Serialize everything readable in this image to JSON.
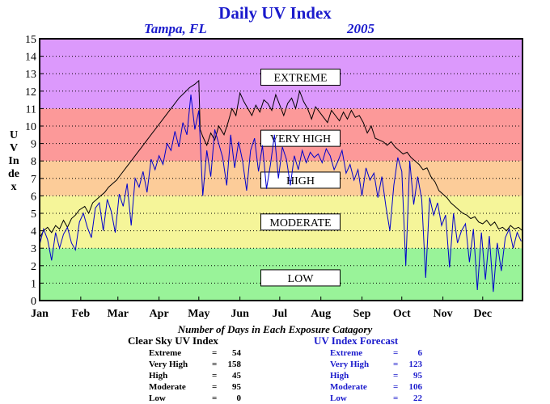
{
  "chart_data": {
    "type": "line",
    "title": "Daily UV Index",
    "subtitle_location": "Tampa, FL",
    "subtitle_year": "2005",
    "ylabel": "UV Index",
    "xlabel": "",
    "ylim": [
      0,
      15
    ],
    "xlim": [
      1,
      365
    ],
    "yticks": [
      0,
      1,
      2,
      3,
      4,
      5,
      6,
      7,
      8,
      9,
      10,
      11,
      12,
      13,
      14,
      15
    ],
    "xticks": [
      {
        "label": "Jan",
        "day": 1
      },
      {
        "label": "Feb",
        "day": 32
      },
      {
        "label": "Mar",
        "day": 60
      },
      {
        "label": "Apr",
        "day": 91
      },
      {
        "label": "May",
        "day": 121
      },
      {
        "label": "Jun",
        "day": 152
      },
      {
        "label": "Jul",
        "day": 182
      },
      {
        "label": "Aug",
        "day": 213
      },
      {
        "label": "Sep",
        "day": 244
      },
      {
        "label": "Oct",
        "day": 274
      },
      {
        "label": "Nov",
        "day": 305
      },
      {
        "label": "Dec",
        "day": 335
      }
    ],
    "grid": "horizontal dotted",
    "bands": [
      {
        "label": "LOW",
        "from": 0,
        "to": 3,
        "color": "#99f399",
        "label_y": 1.3
      },
      {
        "label": "MODERATE",
        "from": 3,
        "to": 6,
        "color": "#f5f599",
        "label_y": 4.5
      },
      {
        "label": "HIGH",
        "from": 6,
        "to": 8,
        "color": "#fccc99",
        "label_y": 6.9
      },
      {
        "label": "VERY HIGH",
        "from": 8,
        "to": 11,
        "color": "#fc9999",
        "label_y": 9.3
      },
      {
        "label": "EXTREME",
        "from": 11,
        "to": 15,
        "color": "#dc99fc",
        "label_y": 12.8
      }
    ],
    "series": [
      {
        "color": "#000000",
        "x": [
          1,
          4,
          7,
          10,
          13,
          16,
          19,
          22,
          25,
          28,
          31,
          35,
          38,
          41,
          44,
          47,
          50,
          53,
          56,
          59,
          62,
          66,
          70,
          74,
          78,
          82,
          86,
          90,
          94,
          98,
          102,
          106,
          110,
          114,
          118,
          121,
          122,
          124,
          127,
          130,
          133,
          136,
          140,
          143,
          146,
          149,
          152,
          155,
          158,
          161,
          164,
          167,
          170,
          173,
          176,
          179,
          182,
          185,
          188,
          191,
          194,
          197,
          200,
          203,
          206,
          209,
          212,
          215,
          218,
          221,
          224,
          227,
          230,
          233,
          236,
          239,
          242,
          245,
          248,
          251,
          254,
          257,
          260,
          263,
          266,
          269,
          272,
          275,
          278,
          281,
          284,
          287,
          290,
          293,
          296,
          299,
          302,
          305,
          308,
          311,
          314,
          317,
          320,
          323,
          326,
          329,
          332,
          335,
          338,
          341,
          344,
          347,
          350,
          353,
          356,
          359,
          362,
          365
        ],
        "y": [
          3.6,
          4.0,
          4.2,
          3.9,
          4.3,
          4.1,
          4.6,
          4.2,
          4.7,
          4.9,
          5.2,
          5.4,
          5.0,
          5.6,
          5.8,
          6.0,
          6.2,
          6.5,
          6.7,
          6.9,
          7.2,
          7.6,
          8.0,
          8.4,
          8.8,
          9.2,
          9.6,
          10.0,
          10.4,
          10.8,
          11.2,
          11.6,
          11.9,
          12.2,
          12.4,
          12.6,
          9.8,
          9.4,
          8.9,
          9.6,
          9.2,
          10.0,
          9.5,
          10.2,
          11.0,
          10.6,
          11.9,
          11.4,
          11.0,
          10.6,
          11.2,
          10.8,
          11.5,
          11.3,
          10.9,
          11.8,
          11.2,
          10.6,
          11.3,
          11.6,
          11.0,
          12.0,
          11.4,
          11.0,
          10.4,
          11.1,
          10.8,
          10.5,
          10.2,
          10.9,
          10.6,
          10.3,
          10.8,
          10.4,
          10.9,
          10.5,
          10.6,
          10.2,
          9.6,
          10.0,
          9.3,
          9.2,
          9.1,
          8.9,
          9.1,
          8.8,
          8.6,
          8.4,
          8.5,
          8.2,
          8.0,
          7.8,
          7.5,
          7.6,
          7.1,
          6.8,
          6.3,
          6.1,
          5.9,
          5.6,
          5.4,
          5.2,
          5.0,
          4.9,
          4.7,
          4.8,
          4.5,
          4.4,
          4.6,
          4.3,
          4.5,
          4.1,
          4.2,
          4.0,
          4.3,
          4.1,
          4.2,
          4.0
        ]
      },
      {
        "color": "#0000cc",
        "x": [
          1,
          4,
          7,
          10,
          13,
          16,
          19,
          22,
          25,
          28,
          31,
          34,
          37,
          40,
          43,
          46,
          49,
          52,
          55,
          58,
          61,
          64,
          67,
          70,
          73,
          76,
          79,
          82,
          85,
          88,
          91,
          94,
          97,
          100,
          103,
          106,
          109,
          112,
          115,
          118,
          121,
          124,
          127,
          130,
          133,
          136,
          139,
          142,
          145,
          148,
          151,
          154,
          157,
          160,
          163,
          166,
          169,
          172,
          175,
          178,
          181,
          184,
          187,
          190,
          193,
          196,
          199,
          202,
          205,
          208,
          211,
          214,
          217,
          220,
          223,
          226,
          229,
          232,
          235,
          238,
          241,
          244,
          247,
          250,
          253,
          256,
          259,
          262,
          265,
          268,
          271,
          274,
          277,
          280,
          283,
          286,
          289,
          292,
          295,
          298,
          301,
          304,
          307,
          310,
          313,
          316,
          319,
          322,
          325,
          328,
          331,
          334,
          337,
          340,
          343,
          346,
          349,
          352,
          355,
          358,
          361,
          364
        ],
        "y": [
          3.2,
          4.1,
          3.5,
          2.3,
          3.9,
          3.0,
          3.8,
          4.2,
          3.3,
          2.9,
          4.5,
          5.0,
          4.2,
          3.6,
          5.3,
          5.6,
          4.0,
          5.8,
          5.1,
          3.9,
          6.1,
          5.4,
          6.7,
          4.3,
          7.0,
          6.5,
          7.4,
          6.2,
          8.1,
          7.5,
          8.3,
          7.8,
          9.0,
          8.6,
          9.7,
          8.8,
          10.2,
          9.5,
          11.8,
          9.8,
          10.9,
          6.0,
          8.6,
          7.1,
          9.8,
          9.0,
          8.2,
          6.6,
          9.5,
          7.6,
          9.1,
          8.0,
          6.3,
          8.6,
          9.3,
          7.4,
          8.9,
          6.4,
          7.8,
          9.5,
          7.0,
          8.8,
          8.1,
          6.6,
          8.3,
          7.5,
          8.6,
          7.9,
          8.5,
          8.2,
          8.4,
          7.9,
          8.7,
          8.3,
          7.5,
          8.0,
          8.6,
          7.3,
          7.8,
          6.9,
          7.5,
          6.0,
          7.6,
          6.9,
          7.3,
          5.9,
          7.1,
          5.4,
          4.0,
          6.6,
          8.2,
          7.4,
          2.0,
          8.0,
          5.5,
          7.1,
          5.8,
          1.3,
          5.9,
          4.9,
          5.6,
          4.3,
          4.9,
          1.9,
          5.0,
          3.3,
          4.0,
          4.4,
          2.2,
          4.1,
          0.6,
          3.9,
          1.2,
          3.7,
          0.5,
          3.3,
          1.7,
          3.6,
          4.1,
          3.0,
          3.9,
          3.4
        ]
      }
    ]
  },
  "summary": {
    "caption": "Number of Days in Each Exposure Catagory",
    "clear_sky": {
      "title": "Clear Sky UV Index",
      "rows": [
        {
          "label": "Extreme",
          "value": "54"
        },
        {
          "label": "Very High",
          "value": "158"
        },
        {
          "label": "High",
          "value": "45"
        },
        {
          "label": "Moderate",
          "value": "95"
        },
        {
          "label": "Low",
          "value": "0"
        }
      ]
    },
    "forecast": {
      "title": "UV Index Forecast",
      "rows": [
        {
          "label": "Extreme",
          "value": "6"
        },
        {
          "label": "Very High",
          "value": "123"
        },
        {
          "label": "High",
          "value": "95"
        },
        {
          "label": "Moderate",
          "value": "106"
        },
        {
          "label": "Low",
          "value": "22"
        }
      ]
    }
  }
}
